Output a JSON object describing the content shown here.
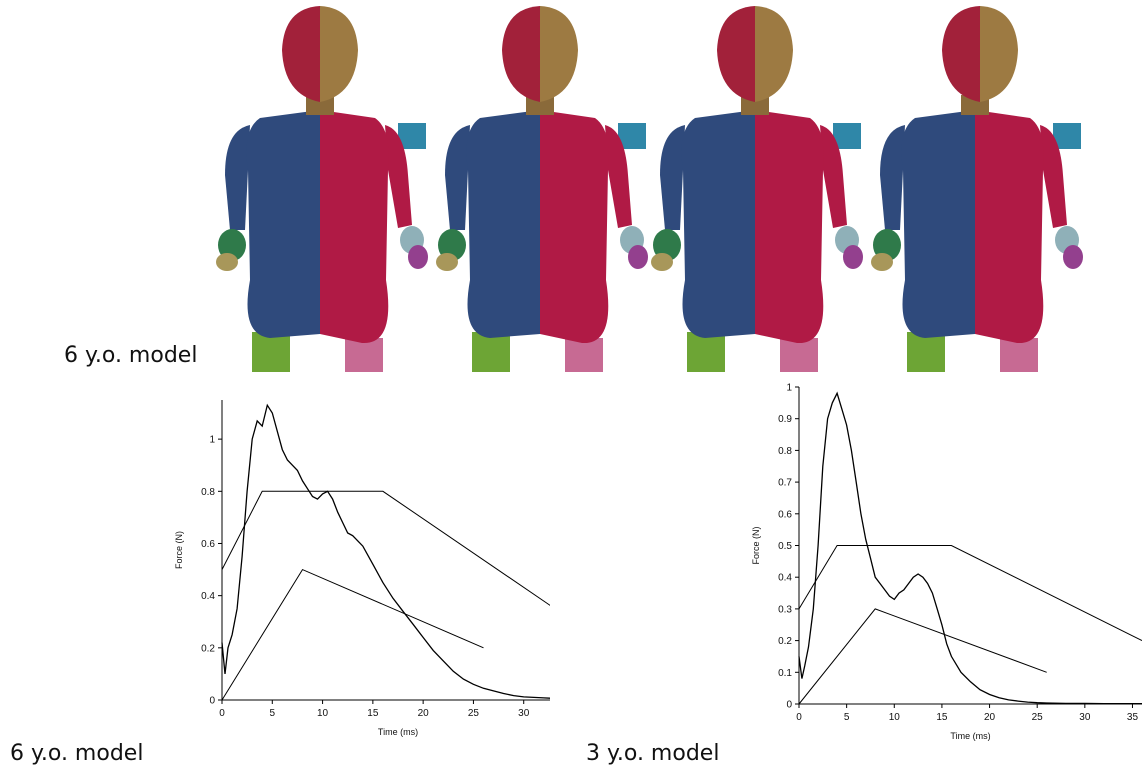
{
  "captions": {
    "top_model_label": "6 y.o. model",
    "left_chart_label": "6 y.o. model",
    "right_chart_label": "3 y.o. model"
  },
  "figure": {
    "models_description_count": 4,
    "colors": {
      "head_left": "#a2213a",
      "head_right": "#9d7a42",
      "torso_left": "#2f4a7c",
      "torso_right": "#b01a45",
      "arm_left_hand": "#2f7a4a",
      "leg_left": "#6da535",
      "leg_right": "#c76a93",
      "impactor": "#2f87a8"
    }
  },
  "chart_data": [
    {
      "type": "line",
      "title": "",
      "xlabel": "Time (ms)",
      "ylabel": "Force (N)",
      "xlim": [
        0,
        35
      ],
      "ylim": [
        0,
        1.15
      ],
      "xticks": [
        0,
        5,
        10,
        15,
        20,
        25,
        30
      ],
      "yticks": [
        0,
        0.2,
        0.4,
        0.6,
        0.8,
        1
      ],
      "grid": false,
      "series": [
        {
          "name": "",
          "x": [
            0,
            0.3,
            0.6,
            1,
            1.5,
            2,
            2.5,
            3,
            3.5,
            4,
            4.5,
            5,
            5.5,
            6,
            6.5,
            7,
            7.5,
            8,
            8.5,
            9,
            9.5,
            10,
            10.5,
            11,
            11.5,
            12,
            12.5,
            13,
            14,
            15,
            16,
            17,
            18,
            19,
            20,
            21,
            22,
            23,
            24,
            25,
            26,
            27,
            28,
            29,
            30,
            31,
            32,
            33,
            34,
            35
          ],
          "y": [
            0.22,
            0.1,
            0.2,
            0.25,
            0.35,
            0.55,
            0.8,
            1.0,
            1.07,
            1.05,
            1.13,
            1.1,
            1.03,
            0.96,
            0.92,
            0.9,
            0.88,
            0.84,
            0.81,
            0.78,
            0.77,
            0.79,
            0.8,
            0.77,
            0.72,
            0.68,
            0.64,
            0.63,
            0.59,
            0.52,
            0.45,
            0.39,
            0.34,
            0.29,
            0.24,
            0.19,
            0.15,
            0.11,
            0.08,
            0.06,
            0.045,
            0.035,
            0.025,
            0.017,
            0.012,
            0.01,
            0.008,
            0.006,
            0.005,
            0.004
          ]
        },
        {
          "name": "",
          "x": [
            0,
            4,
            16,
            35
          ],
          "y": [
            0.5,
            0.8,
            0.8,
            0.3
          ]
        },
        {
          "name": "",
          "x": [
            0,
            8,
            26
          ],
          "y": [
            0,
            0.5,
            0.2
          ]
        }
      ]
    },
    {
      "type": "line",
      "title": "",
      "xlabel": "Time (ms)",
      "ylabel": "Force (N)",
      "xlim": [
        0,
        36
      ],
      "ylim": [
        0,
        1
      ],
      "xticks": [
        0,
        5,
        10,
        15,
        20,
        25,
        30,
        35
      ],
      "yticks": [
        0,
        0.1,
        0.2,
        0.3,
        0.4,
        0.5,
        0.6,
        0.7,
        0.8,
        0.9,
        1
      ],
      "grid": false,
      "series": [
        {
          "name": "",
          "x": [
            0,
            0.3,
            0.6,
            1,
            1.5,
            2,
            2.5,
            3,
            3.5,
            4,
            4.5,
            5,
            5.5,
            6,
            6.5,
            7,
            7.5,
            8,
            8.5,
            9,
            9.5,
            10,
            10.5,
            11,
            11.5,
            12,
            12.5,
            13,
            13.5,
            14,
            14.5,
            15,
            15.5,
            16,
            17,
            18,
            19,
            20,
            21,
            22,
            23,
            24,
            25,
            26,
            28,
            30,
            32,
            34,
            36
          ],
          "y": [
            0.15,
            0.08,
            0.12,
            0.18,
            0.3,
            0.5,
            0.75,
            0.9,
            0.95,
            0.98,
            0.93,
            0.88,
            0.8,
            0.7,
            0.6,
            0.52,
            0.46,
            0.4,
            0.38,
            0.36,
            0.34,
            0.33,
            0.35,
            0.36,
            0.38,
            0.4,
            0.41,
            0.4,
            0.38,
            0.35,
            0.3,
            0.25,
            0.19,
            0.15,
            0.1,
            0.07,
            0.045,
            0.03,
            0.02,
            0.013,
            0.009,
            0.006,
            0.004,
            0.003,
            0.002,
            0.002,
            0.001,
            0.001,
            0.001
          ]
        },
        {
          "name": "",
          "x": [
            0,
            4,
            16,
            36
          ],
          "y": [
            0.3,
            0.5,
            0.5,
            0.2
          ]
        },
        {
          "name": "",
          "x": [
            0,
            8,
            26
          ],
          "y": [
            0,
            0.3,
            0.1
          ]
        }
      ]
    }
  ]
}
